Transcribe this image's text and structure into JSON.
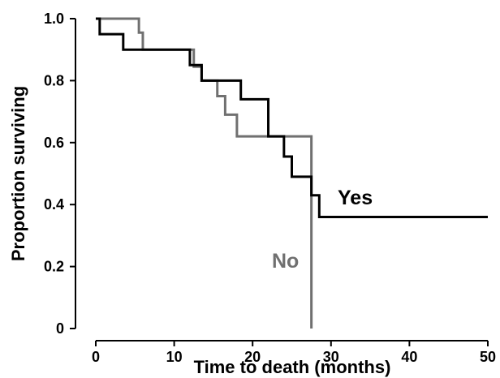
{
  "chart_data": {
    "type": "line",
    "step": true,
    "title": "",
    "xlabel": "Time to death (months)",
    "ylabel": "Proportion surviving",
    "xlim": [
      0,
      50
    ],
    "ylim": [
      0,
      1.0
    ],
    "x_ticks": [
      0,
      10,
      20,
      30,
      40,
      50
    ],
    "y_ticks": [
      0,
      0.2,
      0.4,
      0.6,
      0.8,
      1.0
    ],
    "x_tick_labels": [
      "0",
      "10",
      "20",
      "30",
      "40",
      "50"
    ],
    "y_tick_labels": [
      "0",
      "0.2",
      "0.4",
      "0.6",
      "0.8",
      "1.0"
    ],
    "grid": false,
    "series": [
      {
        "name": "Yes",
        "color": "#000000",
        "x": [
          0,
          0.5,
          3.5,
          12,
          13.5,
          18.5,
          22,
          24,
          25,
          27.5,
          28.5,
          50
        ],
        "y": [
          1.0,
          0.95,
          0.9,
          0.85,
          0.8,
          0.74,
          0.62,
          0.555,
          0.49,
          0.43,
          0.36,
          0.36
        ]
      },
      {
        "name": "No",
        "color": "#707070",
        "x": [
          0,
          5.5,
          6,
          12.5,
          13.5,
          15.5,
          16.5,
          18,
          27.5
        ],
        "y": [
          1.0,
          0.955,
          0.9,
          0.845,
          0.8,
          0.75,
          0.69,
          0.62,
          0.0
        ]
      }
    ]
  }
}
